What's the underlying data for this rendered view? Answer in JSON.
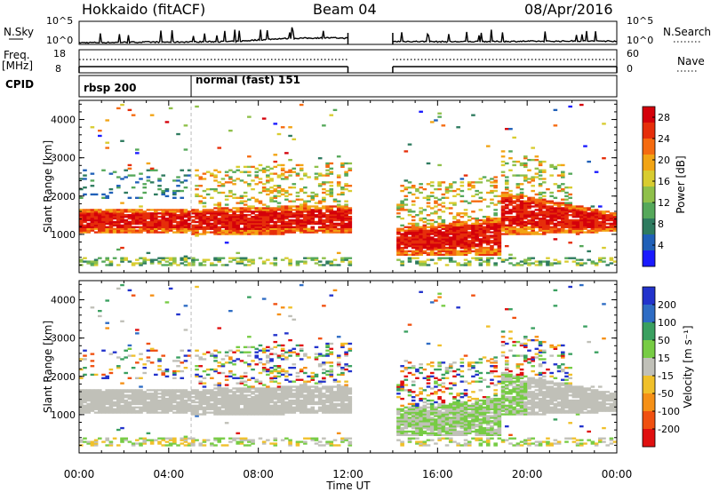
{
  "header": {
    "station": "Hokkaido (fitACF)",
    "beam": "Beam 04",
    "date": "08/Apr/2016"
  },
  "chart_data": [
    {
      "type": "line",
      "panel": "noise",
      "left_label": "N.Sky",
      "right_label": "N.Search",
      "left_ticks": [
        "10^5",
        "10^0"
      ],
      "right_ticks": [
        "10^5",
        "10^0"
      ],
      "x": [
        0,
        1,
        2,
        3,
        4,
        5,
        6,
        7,
        8,
        9,
        10,
        11,
        12,
        14,
        15,
        16,
        17,
        18,
        19,
        20,
        21,
        22,
        23,
        24
      ],
      "series": [
        {
          "name": "N.Sky",
          "values": [
            0.2,
            0.25,
            0.3,
            0.35,
            0.35,
            0.4,
            0.45,
            0.5,
            0.9,
            1.2,
            1.3,
            1.4,
            1.3,
            0.5,
            0.5,
            0.45,
            0.45,
            0.5,
            0.5,
            0.55,
            0.55,
            0.6,
            0.6,
            0.6
          ]
        }
      ]
    },
    {
      "type": "line",
      "panel": "frequency",
      "left_label_1": "Freq.",
      "left_label_2": "[MHz]",
      "right_label": "Nave",
      "left_ticks": [
        "18",
        "8"
      ],
      "right_ticks": [
        "60",
        "0"
      ],
      "segments": [
        [
          0,
          12
        ],
        [
          14,
          24
        ]
      ],
      "frequency_mhz": 10.5,
      "nave_value": 20
    },
    {
      "type": "table",
      "panel": "cpid",
      "label": "CPID",
      "entries": [
        {
          "start_hour": 0,
          "text": "rbsp 200"
        },
        {
          "start_hour": 5,
          "text": "normal (fast) 151"
        }
      ]
    },
    {
      "type": "heatmap",
      "panel": "power",
      "ylabel": "Slant Range [km]",
      "y_ticks": [
        1000,
        2000,
        3000,
        4000
      ],
      "ylim": [
        0,
        4500
      ],
      "xlim": [
        0,
        24
      ],
      "colorbar_label": "Power [dB]",
      "colorbar_ticks": [
        "4",
        "8",
        "12",
        "16",
        "20",
        "24",
        "28"
      ],
      "colors": [
        "#1a1aff",
        "#2060b8",
        "#2e7b5f",
        "#55a85a",
        "#8fc04a",
        "#d8cc30",
        "#f2a414",
        "#f56b10",
        "#e62e0a",
        "#d4000a"
      ]
    },
    {
      "type": "heatmap",
      "panel": "velocity",
      "ylabel": "Slant Range [km]",
      "y_ticks": [
        1000,
        2000,
        3000,
        4000
      ],
      "ylim": [
        0,
        4500
      ],
      "xlim": [
        0,
        24
      ],
      "colorbar_label": "Velocity [m s⁻¹]",
      "colorbar_ticks": [
        "200",
        "100",
        "50",
        "15",
        "-15",
        "-50",
        "-100",
        "-200"
      ],
      "colors": [
        "#2233cc",
        "#2e6cc4",
        "#3aa060",
        "#77cc44",
        "#c0c0b8",
        "#f0c02a",
        "#f59016",
        "#f05010",
        "#e01010"
      ],
      "xlabel": "Time UT",
      "x_ticks": [
        "00:00",
        "04:00",
        "08:00",
        "12:00",
        "16:00",
        "20:00",
        "00:00"
      ]
    }
  ]
}
